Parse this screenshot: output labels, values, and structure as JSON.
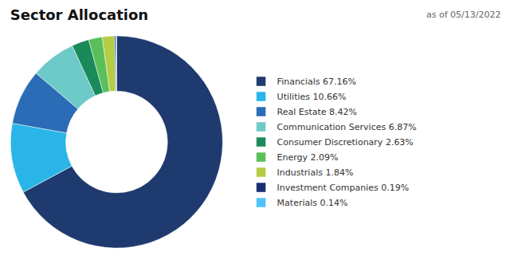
{
  "chart_data": {
    "type": "pie",
    "title": "Sector Allocation",
    "subtitle": "as of 05/13/2022",
    "categories": [
      "Financials 67.16%",
      "Utilities 10.66%",
      "Real Estate 8.42%",
      "Communication Services 6.87%",
      "Consumer Discretionary 2.63%",
      "Energy 2.09%",
      "Industrials 1.84%",
      "Investment Companies 0.19%",
      "Materials 0.14%"
    ],
    "values": [
      67.16,
      10.66,
      8.42,
      6.87,
      2.63,
      2.09,
      1.84,
      0.19,
      0.14
    ],
    "colors": [
      "#1e3a6e",
      "#29b5e8",
      "#2a6cb5",
      "#6ec9c9",
      "#1a8a5a",
      "#5abf5a",
      "#b5cc44",
      "#1a2f6e",
      "#4fc3f7"
    ],
    "legend": "right"
  }
}
